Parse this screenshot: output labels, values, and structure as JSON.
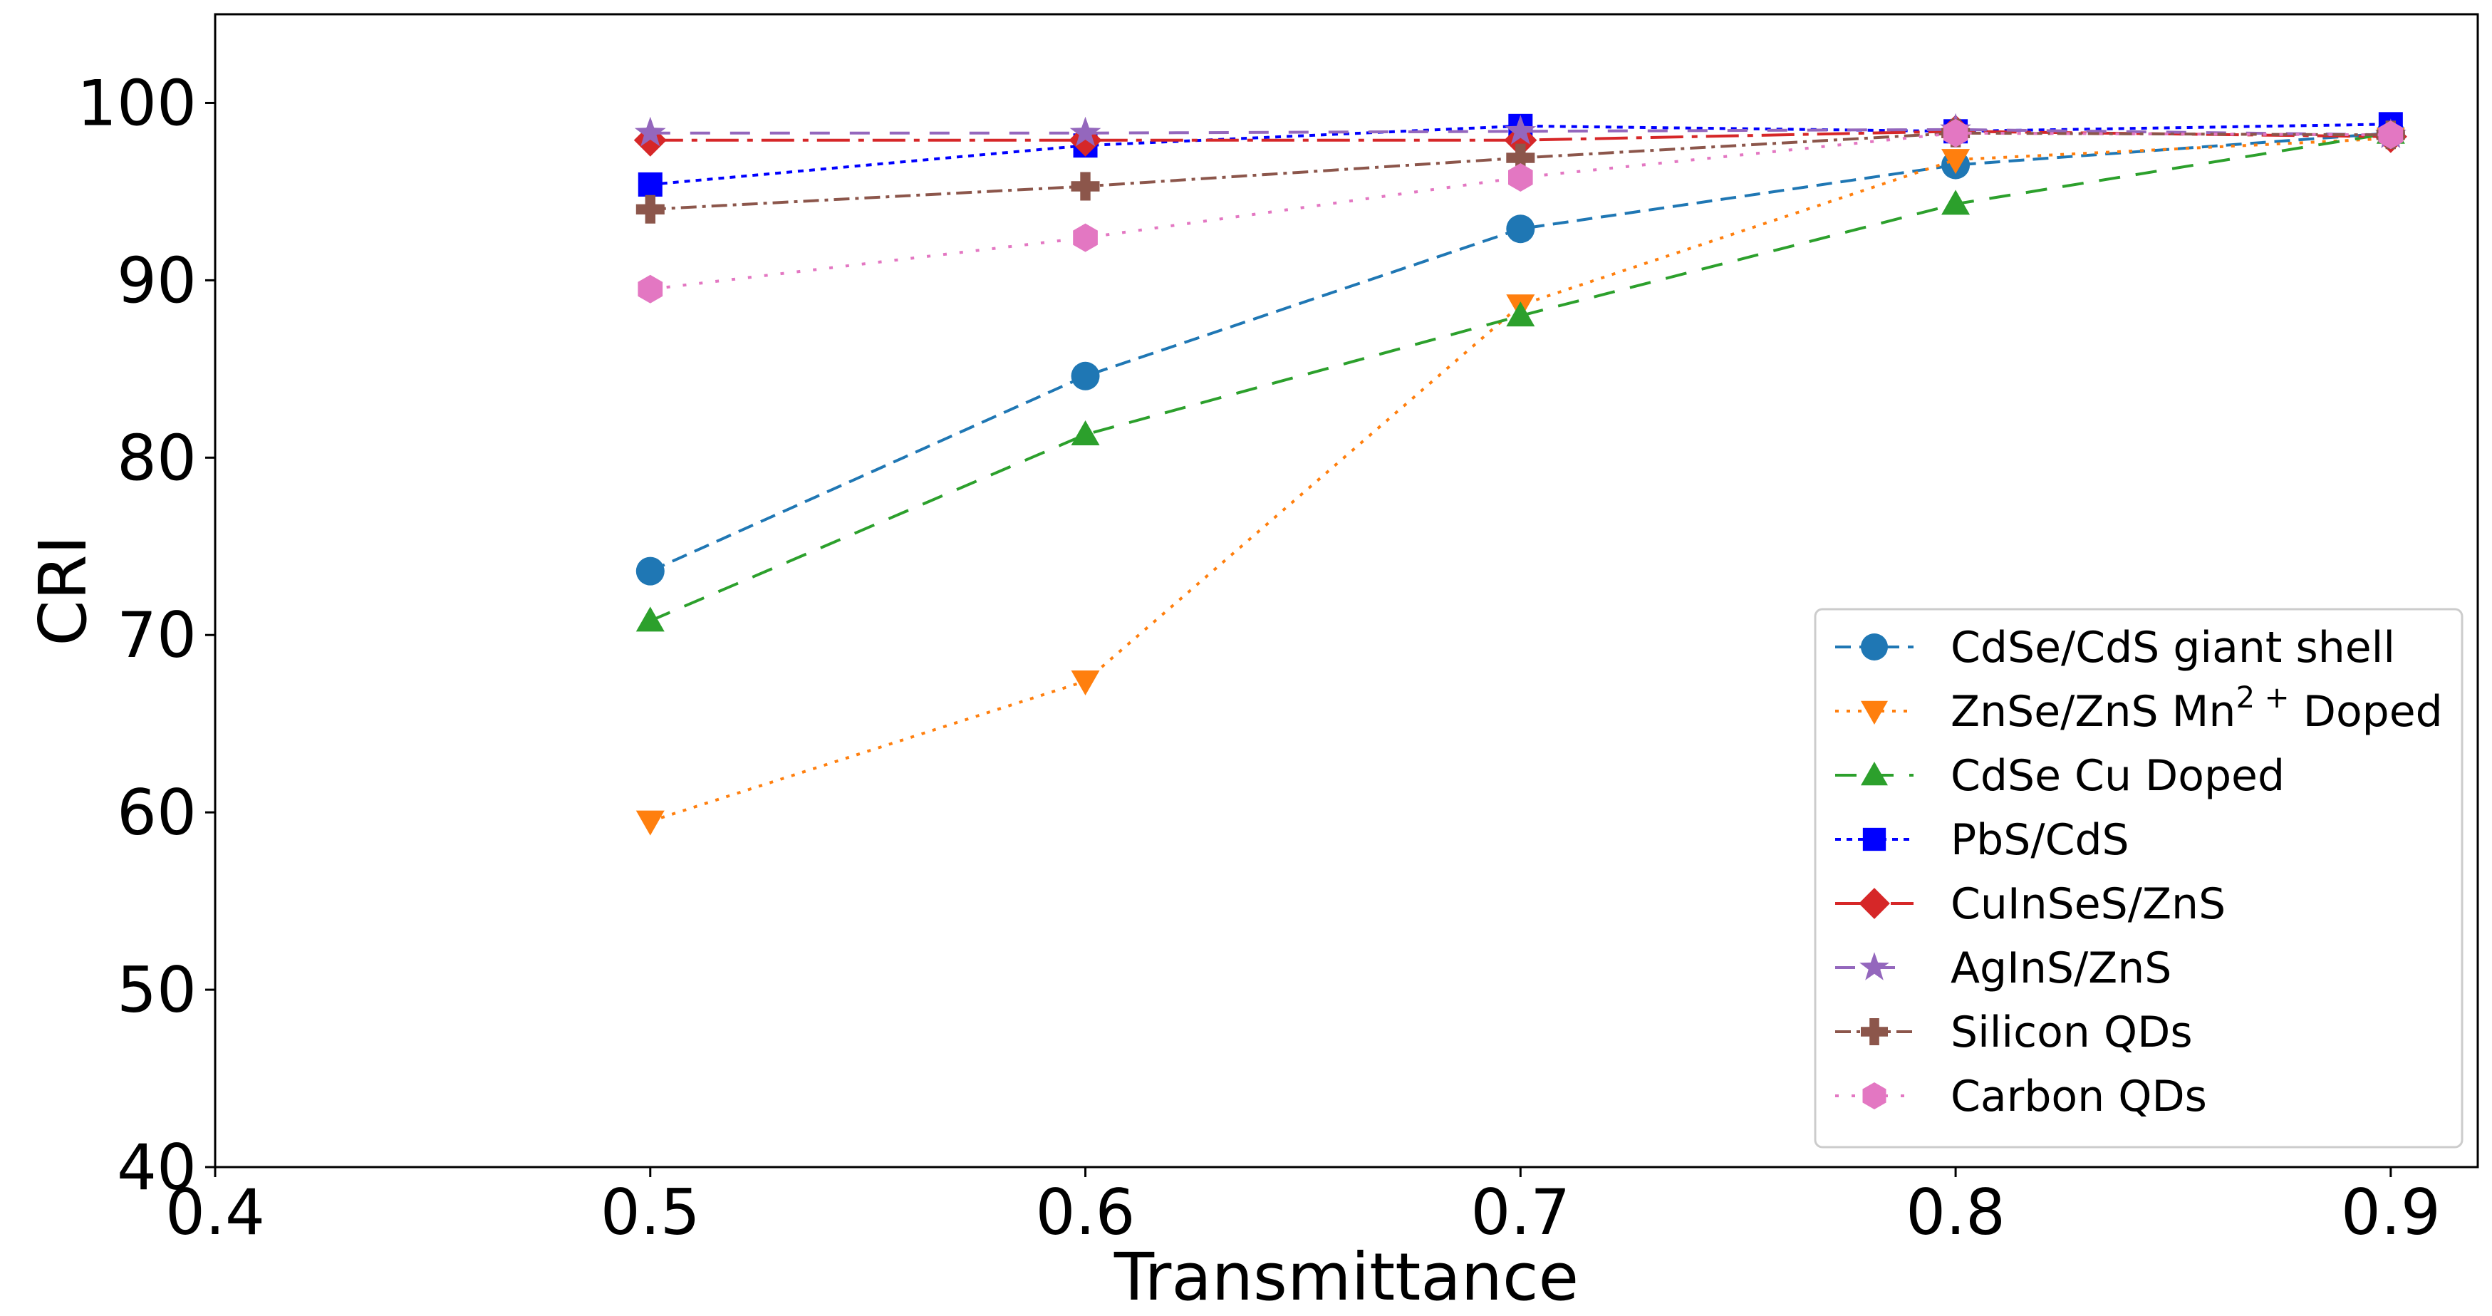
{
  "chart_data": {
    "type": "line",
    "title": "",
    "xlabel": "Transmittance",
    "ylabel": "CRI",
    "xlim": [
      0.4,
      0.92
    ],
    "ylim": [
      40,
      105
    ],
    "xticks": [
      0.4,
      0.5,
      0.6,
      0.7,
      0.8,
      0.9
    ],
    "xtick_labels": [
      "0.4",
      "0.5",
      "0.6",
      "0.7",
      "0.8",
      "0.9"
    ],
    "yticks": [
      40,
      50,
      60,
      70,
      80,
      90,
      100
    ],
    "ytick_labels": [
      "40",
      "50",
      "60",
      "70",
      "80",
      "90",
      "100"
    ],
    "grid": false,
    "legend_position": "bottom-right",
    "x": [
      0.5,
      0.6,
      0.7,
      0.8,
      0.9
    ],
    "series": [
      {
        "name": "CdSe/CdS giant shell",
        "values": [
          73.6,
          84.6,
          92.9,
          96.5,
          98.3
        ],
        "color": "#1f77b4",
        "marker": "circle",
        "dash": "dashed"
      },
      {
        "name": "ZnSe/ZnS Mn²⁺ Doped",
        "name_base": "ZnSe/ZnS Mn",
        "name_sup": "2 +",
        "name_tail": " Doped",
        "values": [
          59.5,
          67.4,
          88.6,
          96.8,
          98.0
        ],
        "color": "#ff7f0e",
        "marker": "triangle-down",
        "dash": "dotted"
      },
      {
        "name": "CdSe Cu Doped",
        "values": [
          70.8,
          81.3,
          88.0,
          94.3,
          98.3
        ],
        "color": "#2ca02c",
        "marker": "triangle-up",
        "dash": "dashed-long"
      },
      {
        "name": "PbS/CdS",
        "values": [
          95.4,
          97.6,
          98.7,
          98.4,
          98.8
        ],
        "color": "#0000ff",
        "marker": "square",
        "dash": "dotted-dense"
      },
      {
        "name": "CuInSeS/ZnS",
        "values": [
          97.9,
          97.9,
          97.9,
          98.4,
          98.1
        ],
        "color": "#d62728",
        "marker": "diamond",
        "dash": "dash-dot-long"
      },
      {
        "name": "AgInS/ZnS",
        "values": [
          98.3,
          98.3,
          98.4,
          98.5,
          98.2
        ],
        "color": "#9467bd",
        "marker": "star",
        "dash": "dashed-wide"
      },
      {
        "name": "Silicon QDs",
        "values": [
          94.0,
          95.3,
          96.9,
          98.3,
          98.2
        ],
        "color": "#8c564b",
        "marker": "plus",
        "dash": "dash-dot"
      },
      {
        "name": "Carbon QDs",
        "values": [
          89.5,
          92.4,
          95.8,
          98.3,
          98.2
        ],
        "color": "#e377c2",
        "marker": "hexagon",
        "dash": "sparse-dotted"
      }
    ]
  }
}
